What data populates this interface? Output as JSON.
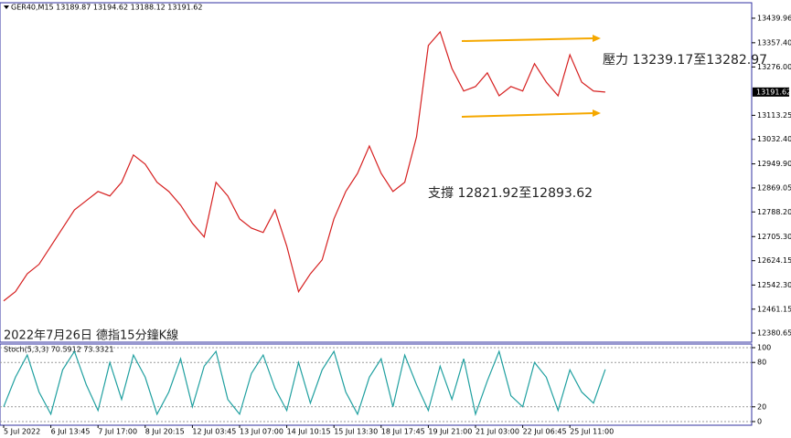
{
  "chart_data": [
    {
      "type": "line",
      "title": "GER40,M15  13189.87 13194.62 13188.12 13191.62",
      "annotations": [
        "壓力 13239.17至13282.97",
        "支撐 12821.92至12893.62",
        "2022年7月26日 德指15分鐘K線"
      ],
      "current_price": 13191.62,
      "categories": [
        "5 Jul 2022",
        null,
        null,
        null,
        "6 Jul 13:45",
        null,
        null,
        null,
        "7 Jul 17:00",
        null,
        null,
        null,
        "8 Jul 20:15",
        null,
        null,
        null,
        "12 Jul 03:45",
        null,
        null,
        null,
        "13 Jul 07:00",
        null,
        null,
        null,
        "14 Jul 10:15",
        null,
        null,
        null,
        "15 Jul 13:30",
        null,
        null,
        null,
        "18 Jul 17:45",
        null,
        null,
        null,
        "19 Jul 21:00",
        null,
        null,
        null,
        "21 Jul 03:00",
        null,
        null,
        null,
        "22 Jul 06:45",
        null,
        null,
        null,
        "25 Jul 11:00",
        null,
        null,
        null
      ],
      "values": [
        12489,
        12520,
        12580,
        12612,
        12673,
        12734,
        12795,
        12826,
        12857,
        12842,
        12888,
        12980,
        12949,
        12888,
        12857,
        12811,
        12750,
        12704,
        12888,
        12842,
        12765,
        12734,
        12719,
        12795,
        12673,
        12520,
        12580,
        12627,
        12765,
        12857,
        12918,
        13010,
        12918,
        12857,
        12888,
        13041,
        13348,
        13394,
        13271,
        13195,
        13210,
        13256,
        13179,
        13210,
        13195,
        13287,
        13225,
        13179,
        13317,
        13225,
        13195,
        13191.62
      ],
      "color": "#d62020",
      "ylim": [
        12350,
        13492
      ],
      "yticks": [
        {
          "value": 13439.96,
          "label": "13439.96"
        },
        {
          "value": 13357.4,
          "label": "13357.40"
        },
        {
          "value": 13276,
          "label": "13276.00"
        },
        {
          "value": 13113.25,
          "label": "13113.25"
        },
        {
          "value": 13032.4,
          "label": "13032.40"
        },
        {
          "value": 12949.9,
          "label": "12949.90"
        },
        {
          "value": 12869.05,
          "label": "12869.05"
        },
        {
          "value": 12788.2,
          "label": "12788.20"
        },
        {
          "value": 12705.3,
          "label": "12705.30"
        },
        {
          "value": 12624.15,
          "label": "12624.15"
        },
        {
          "value": 12542.3,
          "label": "12542.30"
        },
        {
          "value": 12461.15,
          "label": "12461.15"
        },
        {
          "value": 12380.65,
          "label": "12380.65"
        }
      ]
    },
    {
      "type": "line",
      "title": "Stoch(5,3,3) 70.5912 73.3321",
      "values": [
        20,
        60,
        90,
        40,
        10,
        70,
        95,
        50,
        15,
        80,
        30,
        90,
        60,
        10,
        40,
        85,
        20,
        75,
        95,
        30,
        10,
        65,
        90,
        45,
        15,
        80,
        25,
        70,
        95,
        40,
        10,
        60,
        85,
        20,
        90,
        50,
        15,
        75,
        30,
        85,
        10,
        55,
        95,
        35,
        20,
        80,
        60,
        15,
        70,
        40,
        25,
        70.5912
      ],
      "color": "#20a0a0",
      "ylim": [
        0,
        100
      ],
      "yticks": [
        100,
        80,
        20,
        0
      ]
    }
  ]
}
